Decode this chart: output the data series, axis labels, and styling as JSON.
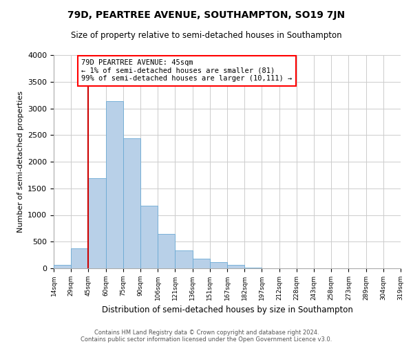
{
  "title": "79D, PEARTREE AVENUE, SOUTHAMPTON, SO19 7JN",
  "subtitle": "Size of property relative to semi-detached houses in Southampton",
  "xlabel": "Distribution of semi-detached houses by size in Southampton",
  "ylabel": "Number of semi-detached properties",
  "footnote1": "Contains HM Land Registry data © Crown copyright and database right 2024.",
  "footnote2": "Contains public sector information licensed under the Open Government Licence v3.0.",
  "annotation_line1": "79D PEARTREE AVENUE: 45sqm",
  "annotation_line2": "← 1% of semi-detached houses are smaller (81)",
  "annotation_line3": "99% of semi-detached houses are larger (10,111) →",
  "bar_color": "#b8d0e8",
  "bar_edge_color": "#6aaad4",
  "vline_color": "#cc0000",
  "bins": [
    "14sqm",
    "29sqm",
    "45sqm",
    "60sqm",
    "75sqm",
    "90sqm",
    "106sqm",
    "121sqm",
    "136sqm",
    "151sqm",
    "167sqm",
    "182sqm",
    "197sqm",
    "212sqm",
    "228sqm",
    "243sqm",
    "258sqm",
    "273sqm",
    "289sqm",
    "304sqm",
    "319sqm"
  ],
  "values": [
    70,
    375,
    1690,
    3140,
    2440,
    1170,
    640,
    330,
    185,
    110,
    60,
    15,
    5,
    2,
    1,
    0,
    0,
    0,
    0,
    0
  ],
  "ylim": [
    0,
    4000
  ],
  "yticks": [
    0,
    500,
    1000,
    1500,
    2000,
    2500,
    3000,
    3500,
    4000
  ],
  "background_color": "#ffffff",
  "grid_color": "#cccccc"
}
